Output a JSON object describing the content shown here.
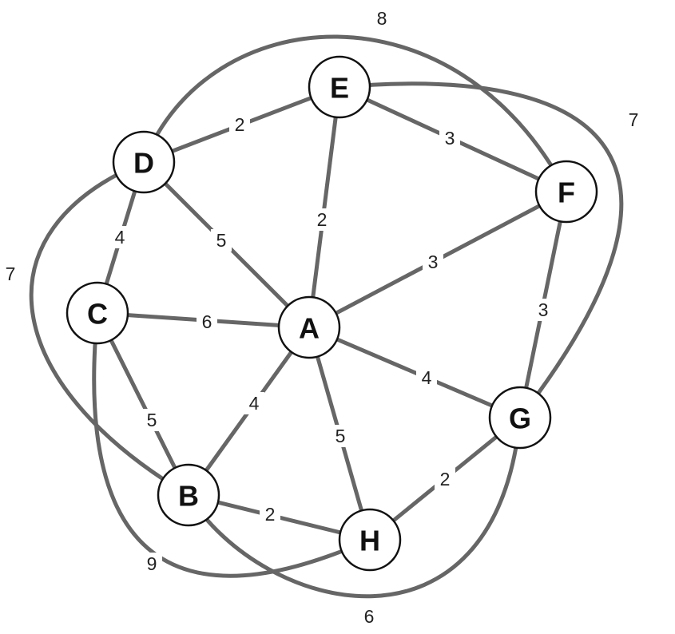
{
  "graph": {
    "nodes": [
      "A",
      "B",
      "C",
      "D",
      "E",
      "F",
      "G",
      "H"
    ],
    "edges": [
      {
        "from": "D",
        "to": "F",
        "weight": "8"
      },
      {
        "from": "E",
        "to": "G",
        "weight": "7"
      },
      {
        "from": "D",
        "to": "B",
        "weight": "7"
      },
      {
        "from": "C",
        "to": "H",
        "weight": "9"
      },
      {
        "from": "B",
        "to": "G",
        "weight": "6"
      },
      {
        "from": "D",
        "to": "E",
        "weight": "2"
      },
      {
        "from": "E",
        "to": "F",
        "weight": "3"
      },
      {
        "from": "E",
        "to": "A",
        "weight": "2"
      },
      {
        "from": "D",
        "to": "C",
        "weight": "4"
      },
      {
        "from": "D",
        "to": "A",
        "weight": "5"
      },
      {
        "from": "F",
        "to": "A",
        "weight": "3"
      },
      {
        "from": "F",
        "to": "G",
        "weight": "3"
      },
      {
        "from": "C",
        "to": "A",
        "weight": "6"
      },
      {
        "from": "A",
        "to": "G",
        "weight": "4"
      },
      {
        "from": "C",
        "to": "B",
        "weight": "5"
      },
      {
        "from": "A",
        "to": "B",
        "weight": "4"
      },
      {
        "from": "A",
        "to": "H",
        "weight": "5"
      },
      {
        "from": "B",
        "to": "H",
        "weight": "2"
      },
      {
        "from": "H",
        "to": "G",
        "weight": "2"
      }
    ]
  }
}
